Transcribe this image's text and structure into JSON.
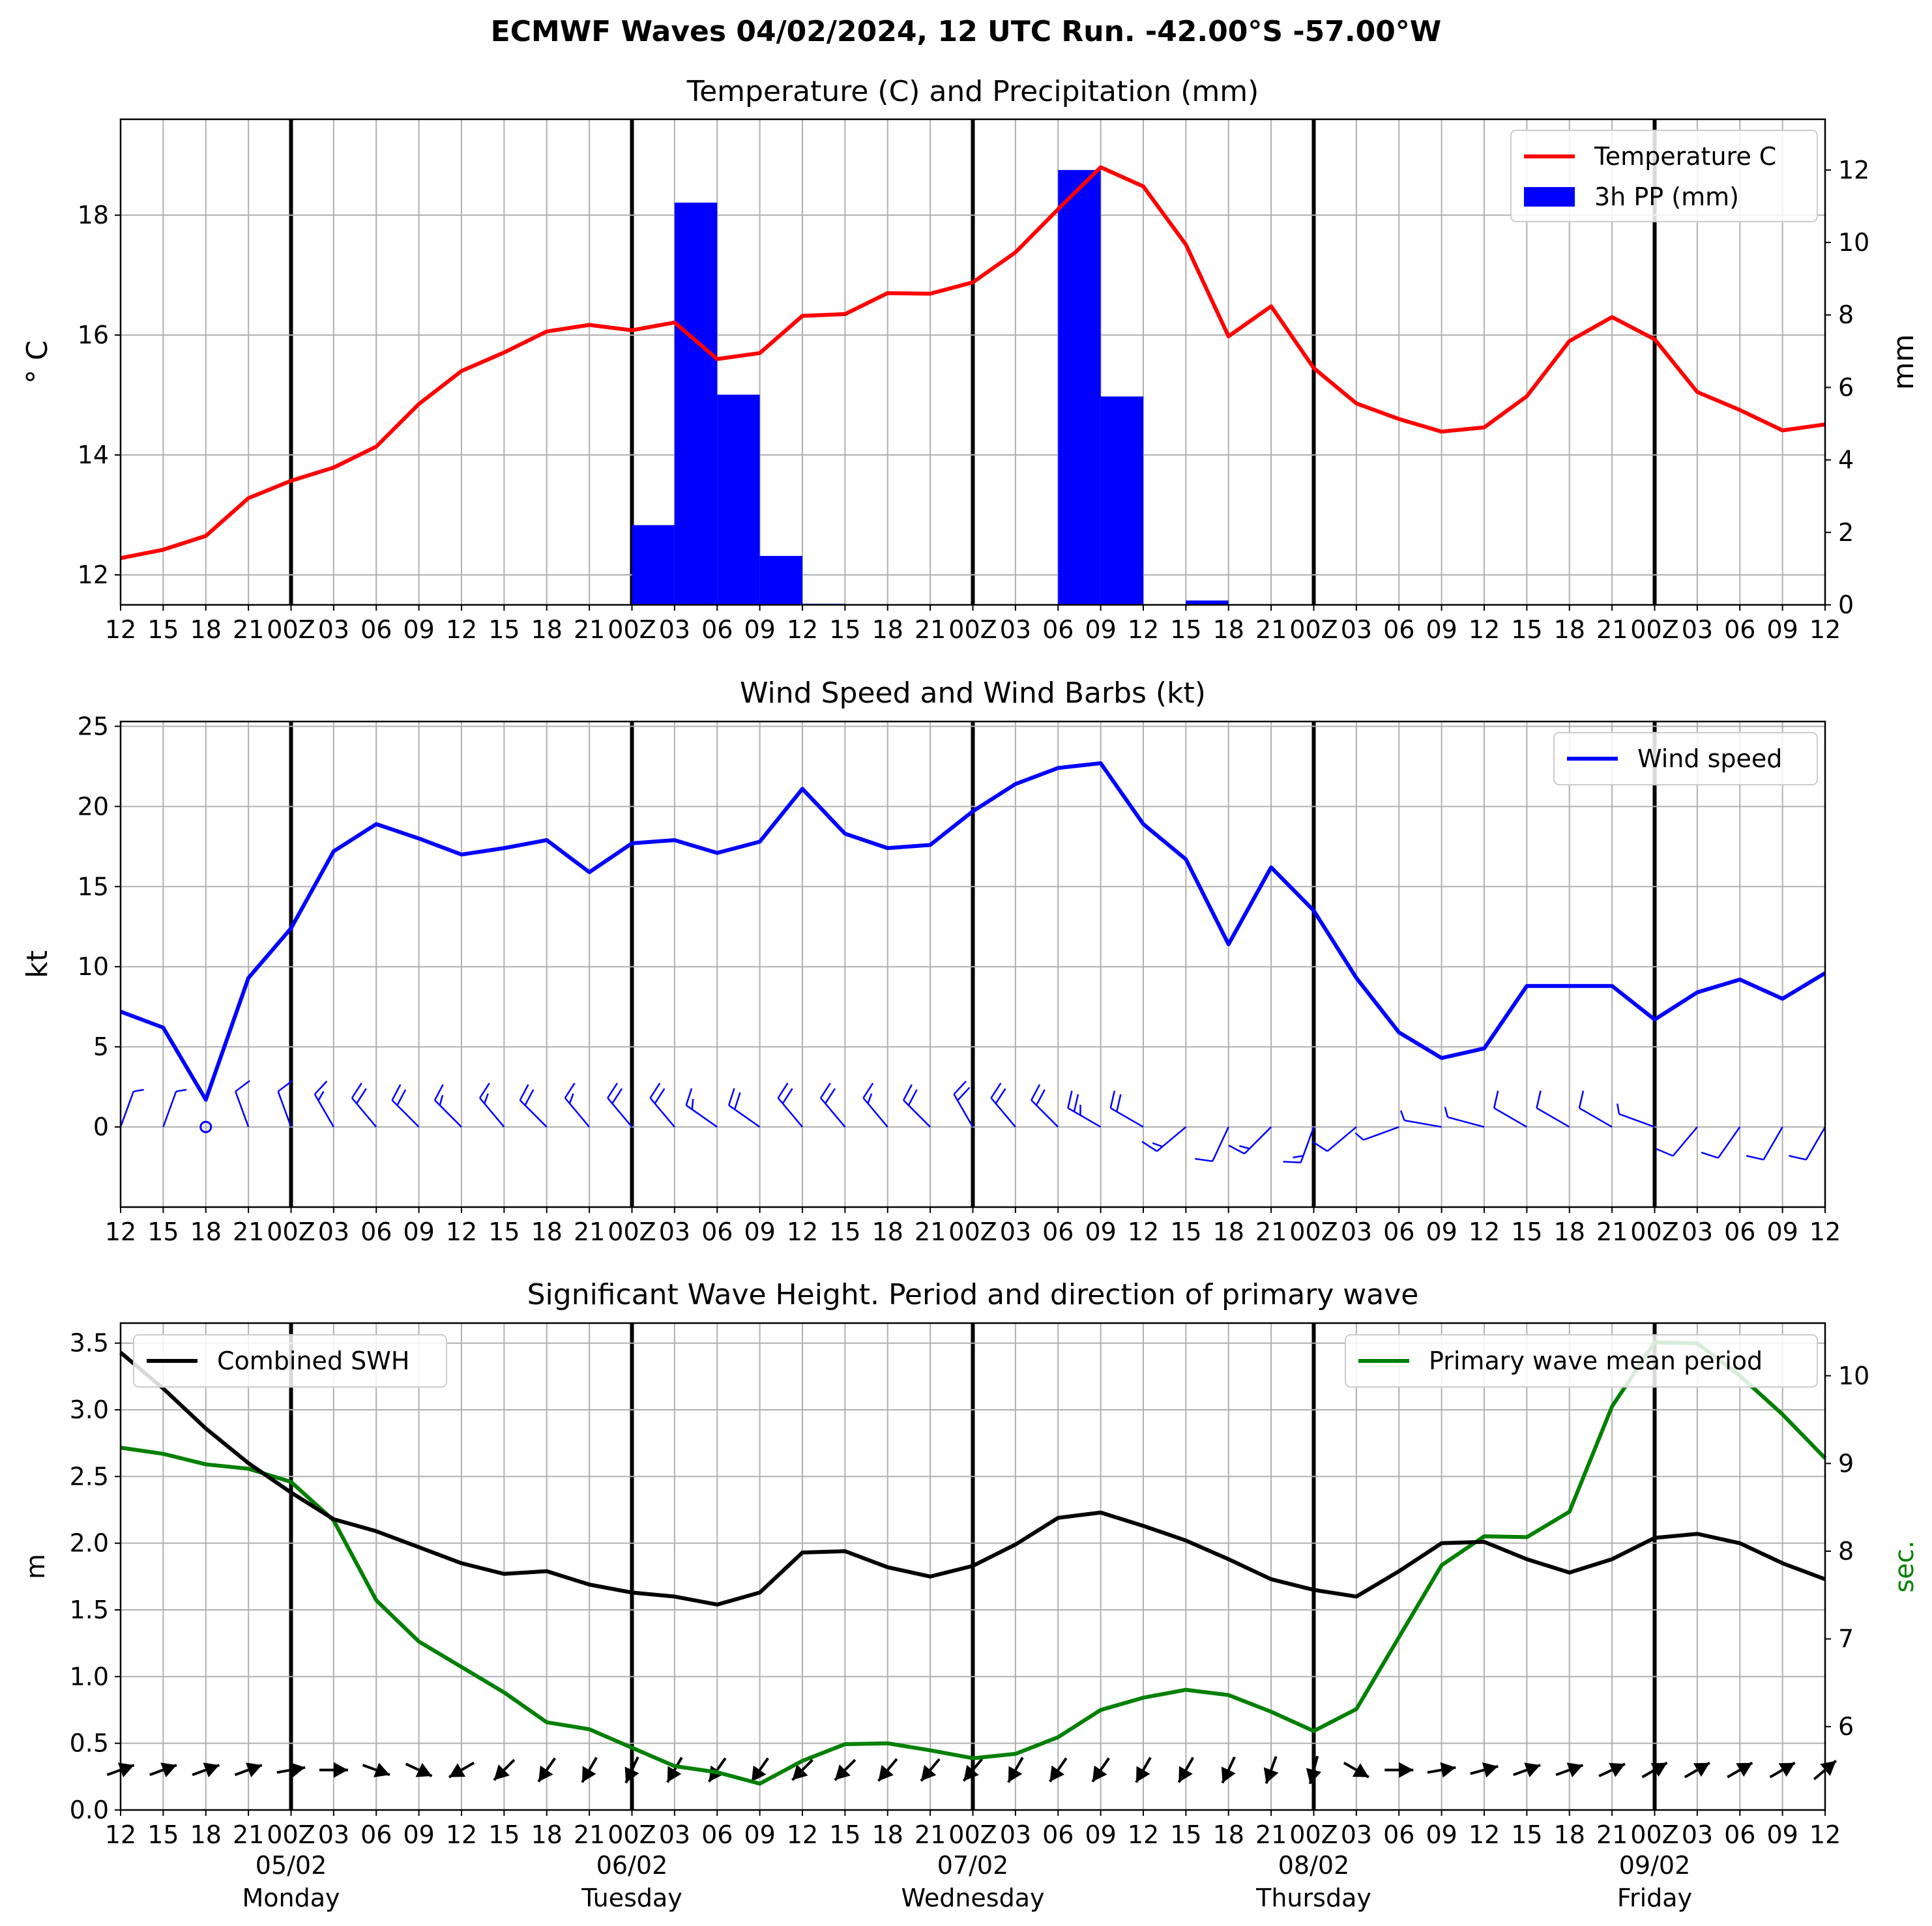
{
  "title": "ECMWF Waves 04/02/2024, 12 UTC Run. -42.00°S -57.00°W",
  "x_tick_labels": [
    "12",
    "15",
    "18",
    "21",
    "00Z",
    "03",
    "06",
    "09",
    "12",
    "15",
    "18",
    "21",
    "00Z",
    "03",
    "06",
    "09",
    "12",
    "15",
    "18",
    "21",
    "00Z",
    "03",
    "06",
    "09",
    "12",
    "15",
    "18",
    "21",
    "00Z",
    "03",
    "06",
    "09",
    "12",
    "15",
    "18",
    "21",
    "00Z",
    "03",
    "06",
    "09",
    "12"
  ],
  "day_labels": [
    {
      "date": "05/02",
      "day": "Monday",
      "tick": 4
    },
    {
      "date": "06/02",
      "day": "Tuesday",
      "tick": 12
    },
    {
      "date": "07/02",
      "day": "Wednesday",
      "tick": 20
    },
    {
      "date": "08/02",
      "day": "Thursday",
      "tick": 28
    },
    {
      "date": "09/02",
      "day": "Friday",
      "tick": 36
    }
  ],
  "day_boundaries": [
    4,
    12,
    20,
    28,
    36
  ],
  "colors": {
    "temperature": "#ff0000",
    "precip": "#0000ff",
    "wind": "#0000ff",
    "swh": "#000000",
    "period": "#008000",
    "grid": "#b0b0b0"
  },
  "chart_data": [
    {
      "type": "line",
      "title": "Temperature (C) and Precipitation (mm)",
      "ylabel": "$^\\circ$C",
      "ylabel_display": "° C",
      "y2label": "mm",
      "ylim": [
        11.5,
        19.6
      ],
      "y2lim": [
        0,
        13.4
      ],
      "yticks": [
        12,
        14,
        16,
        18
      ],
      "y2ticks": [
        0,
        2,
        4,
        6,
        8,
        10,
        12
      ],
      "legend_position": "top-right",
      "grid": true,
      "series": [
        {
          "name": "Temperature C",
          "kind": "line",
          "axis": "left",
          "color": "#ff0000",
          "values": [
            12.28,
            12.42,
            12.65,
            13.28,
            13.57,
            13.79,
            14.14,
            14.85,
            15.4,
            15.71,
            16.06,
            16.17,
            16.08,
            16.21,
            15.6,
            15.7,
            16.32,
            16.35,
            16.7,
            16.69,
            16.88,
            17.38,
            18.1,
            18.8,
            18.48,
            17.51,
            15.98,
            16.48,
            15.45,
            14.86,
            14.6,
            14.39,
            14.46,
            14.98,
            15.9,
            16.3,
            15.93,
            15.05,
            14.75,
            14.41,
            14.51
          ]
        },
        {
          "name": "3h PP (mm)",
          "kind": "bar",
          "axis": "right",
          "color": "#0000ff",
          "values": [
            0,
            0,
            0,
            0,
            0,
            0,
            0,
            0,
            0,
            0,
            0,
            0,
            2.2,
            11.1,
            5.8,
            1.35,
            0.03,
            0,
            0,
            0,
            0,
            0,
            12.0,
            5.75,
            0,
            0.12,
            0,
            0,
            0,
            0,
            0,
            0,
            0,
            0,
            0,
            0,
            0,
            0,
            0,
            0,
            0
          ]
        }
      ]
    },
    {
      "type": "line",
      "title": "Wind Speed and Wind Barbs (kt)",
      "ylabel": "kt",
      "ylim": [
        -5,
        25.3
      ],
      "yticks": [
        0,
        5,
        10,
        15,
        20,
        25
      ],
      "legend_position": "top-right",
      "grid": true,
      "series": [
        {
          "name": "Wind speed",
          "color": "#0000ff",
          "values": [
            7.2,
            6.2,
            1.7,
            9.3,
            12.4,
            17.2,
            18.9,
            18.0,
            17.0,
            17.4,
            17.9,
            15.9,
            17.7,
            17.9,
            17.1,
            17.8,
            21.1,
            18.3,
            17.4,
            17.6,
            19.7,
            21.4,
            22.4,
            22.7,
            18.9,
            16.7,
            11.4,
            16.2,
            13.5,
            9.3,
            5.9,
            4.3,
            4.9,
            8.8,
            8.8,
            8.8,
            6.7,
            8.4,
            9.2,
            8.0,
            9.6
          ]
        }
      ],
      "barb_directions_deg": [
        20,
        20,
        0,
        340,
        340,
        330,
        320,
        315,
        315,
        320,
        315,
        320,
        320,
        320,
        305,
        305,
        320,
        320,
        320,
        315,
        330,
        320,
        315,
        300,
        300,
        230,
        205,
        225,
        200,
        230,
        250,
        280,
        285,
        300,
        300,
        300,
        290,
        220,
        215,
        210,
        210
      ]
    },
    {
      "type": "line",
      "title": "Significant Wave Height. Period and direction of primary wave",
      "ylabel": "m",
      "y2label": "sec.",
      "ylim": [
        0,
        3.65
      ],
      "y2lim": [
        5.05,
        10.6
      ],
      "yticks": [
        0.0,
        0.5,
        1.0,
        1.5,
        2.0,
        2.5,
        3.0,
        3.5
      ],
      "y2ticks": [
        6,
        7,
        8,
        9,
        10
      ],
      "legend_left": "top-left",
      "legend_right": "top-right",
      "grid": true,
      "series": [
        {
          "name": "Combined SWH",
          "axis": "left",
          "color": "#000000",
          "values": [
            3.43,
            3.16,
            2.86,
            2.6,
            2.38,
            2.18,
            2.09,
            1.97,
            1.85,
            1.77,
            1.79,
            1.69,
            1.63,
            1.6,
            1.54,
            1.63,
            1.93,
            1.94,
            1.82,
            1.75,
            1.83,
            1.99,
            2.19,
            2.23,
            2.13,
            2.02,
            1.88,
            1.73,
            1.65,
            1.6,
            1.79,
            2.0,
            2.01,
            1.88,
            1.78,
            1.88,
            2.04,
            2.07,
            2.0,
            1.85,
            1.73
          ]
        },
        {
          "name": "Primary wave mean period",
          "axis": "right",
          "color": "#008000",
          "values": [
            9.18,
            9.11,
            8.99,
            8.94,
            8.79,
            8.35,
            7.44,
            6.97,
            6.68,
            6.39,
            6.05,
            5.97,
            5.76,
            5.55,
            5.48,
            5.35,
            5.61,
            5.8,
            5.81,
            5.73,
            5.64,
            5.69,
            5.88,
            6.19,
            6.33,
            6.42,
            6.36,
            6.17,
            5.95,
            6.2,
            7.02,
            7.84,
            8.17,
            8.16,
            8.45,
            9.65,
            10.38,
            10.37,
            10.0,
            9.56,
            9.06
          ]
        }
      ],
      "wave_directions_deg": [
        70,
        70,
        70,
        70,
        80,
        90,
        110,
        115,
        240,
        225,
        215,
        210,
        205,
        210,
        215,
        215,
        225,
        225,
        220,
        220,
        220,
        210,
        215,
        215,
        210,
        210,
        205,
        200,
        195,
        120,
        90,
        80,
        75,
        70,
        70,
        65,
        60,
        60,
        60,
        60,
        50
      ]
    }
  ]
}
